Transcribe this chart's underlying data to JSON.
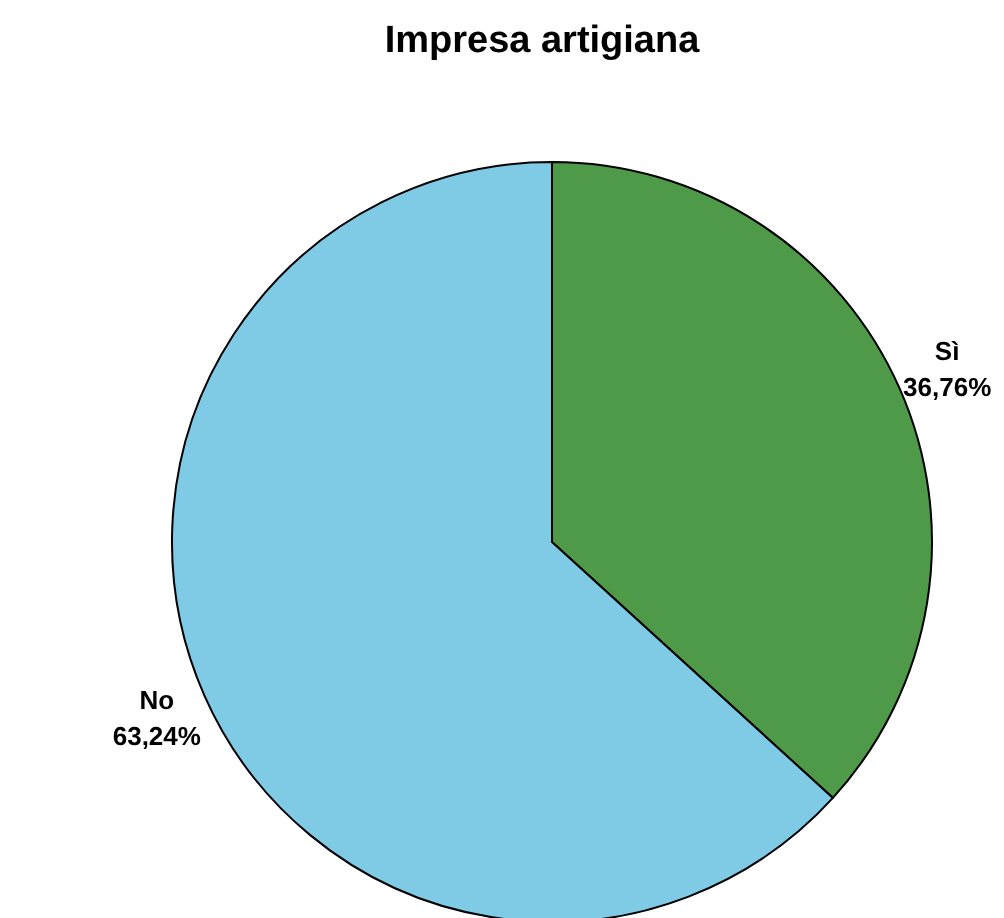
{
  "chart_data": {
    "type": "pie",
    "title": "Impresa artigiana",
    "categories": [
      "Sì",
      "No"
    ],
    "values": [
      36.76,
      63.24
    ],
    "colors": [
      "#4f9a48",
      "#7fcbe6"
    ],
    "value_labels": [
      "36,76%",
      "63,24%"
    ]
  }
}
